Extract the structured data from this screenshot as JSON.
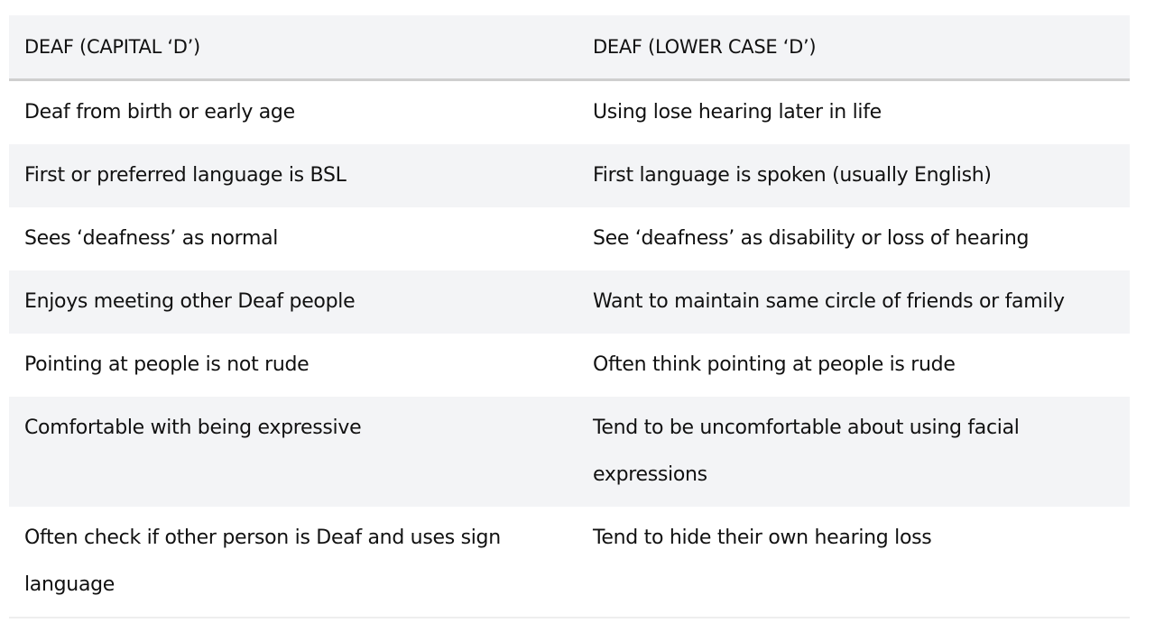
{
  "table": {
    "headers": [
      "DEAF (CAPITAL ‘D’)",
      "DEAF (LOWER CASE ‘D’)"
    ],
    "rows": [
      [
        "Deaf from birth or early age",
        "Using lose hearing later in life"
      ],
      [
        "First or preferred language is BSL",
        "First language is spoken (usually English)"
      ],
      [
        "Sees ‘deafness’ as normal",
        "See ‘deafness’ as disability or loss of hearing"
      ],
      [
        "Enjoys meeting other Deaf people",
        "Want to maintain same circle of friends or family"
      ],
      [
        "Pointing at people is not rude",
        "Often think pointing at people is rude"
      ],
      [
        "Comfortable with being expressive",
        "Tend to be uncomfortable about using facial expressions"
      ],
      [
        "Often check if other person is Deaf and uses sign language",
        "Tend to hide their own hearing loss"
      ]
    ]
  },
  "colors": {
    "stripe": "#f3f4f6",
    "header_border": "#cfcfcf",
    "text": "#111111"
  }
}
